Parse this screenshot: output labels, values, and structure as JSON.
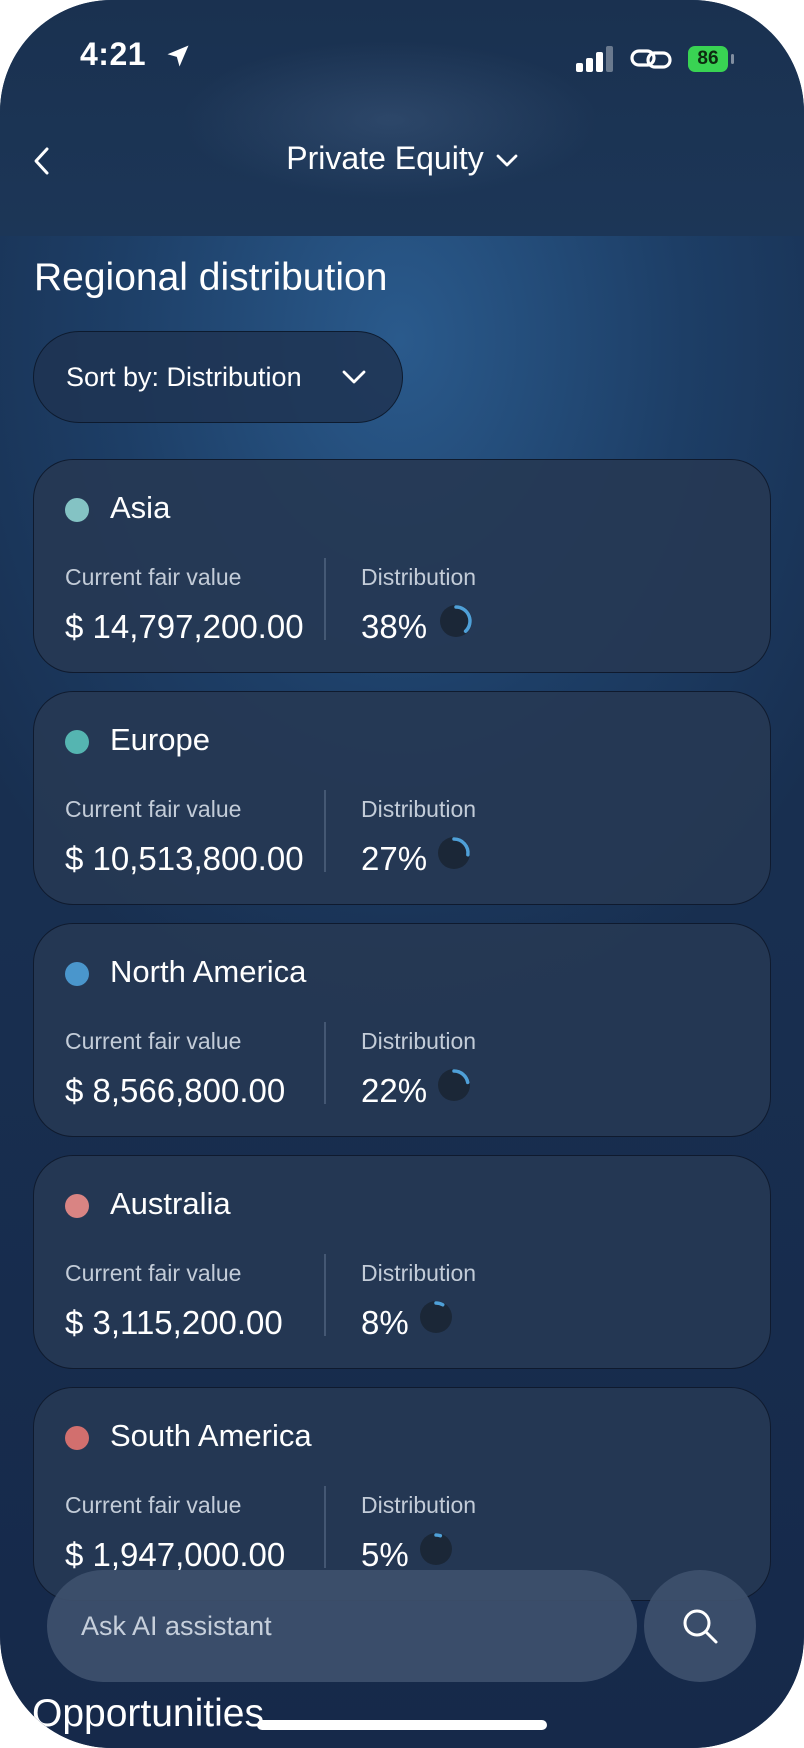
{
  "status_bar": {
    "time": "4:21",
    "battery": "86"
  },
  "nav": {
    "title": "Private Equity"
  },
  "section": {
    "title": "Regional distribution"
  },
  "sort": {
    "label": "Sort by: Distribution"
  },
  "colors": {
    "asia": "#84c3c4",
    "europe": "#55b5b1",
    "north_america": "#4a96cc",
    "australia": "#d98483",
    "south_america": "#d26f6e",
    "ring_track": "#1b2737",
    "ring_arc": "#4fa0d8"
  },
  "regions": [
    {
      "name": "Asia",
      "fair_value_label": "Current fair value",
      "fair_value": "$ 14,797,200.00",
      "distribution_label": "Distribution",
      "distribution": "38%",
      "pct": 38
    },
    {
      "name": "Europe",
      "fair_value_label": "Current fair value",
      "fair_value": "$ 10,513,800.00",
      "distribution_label": "Distribution",
      "distribution": "27%",
      "pct": 27
    },
    {
      "name": "North America",
      "fair_value_label": "Current fair value",
      "fair_value": "$ 8,566,800.00",
      "distribution_label": "Distribution",
      "distribution": "22%",
      "pct": 22
    },
    {
      "name": "Australia",
      "fair_value_label": "Current fair value",
      "fair_value": "$ 3,115,200.00",
      "distribution_label": "Distribution",
      "distribution": "8%",
      "pct": 8
    },
    {
      "name": "South America",
      "fair_value_label": "Current fair value",
      "fair_value": "$ 1,947,000.00",
      "distribution_label": "Distribution",
      "distribution": "5%",
      "pct": 5
    }
  ],
  "assistant": {
    "placeholder": "Ask AI assistant"
  },
  "next_section": {
    "title": "Opportunities"
  },
  "icons": {
    "location": "location-arrow-icon",
    "signal": "cellular-signal-icon",
    "link": "link-icon",
    "back": "chevron-left-icon",
    "dropdown": "chevron-down-icon",
    "search": "search-icon"
  }
}
